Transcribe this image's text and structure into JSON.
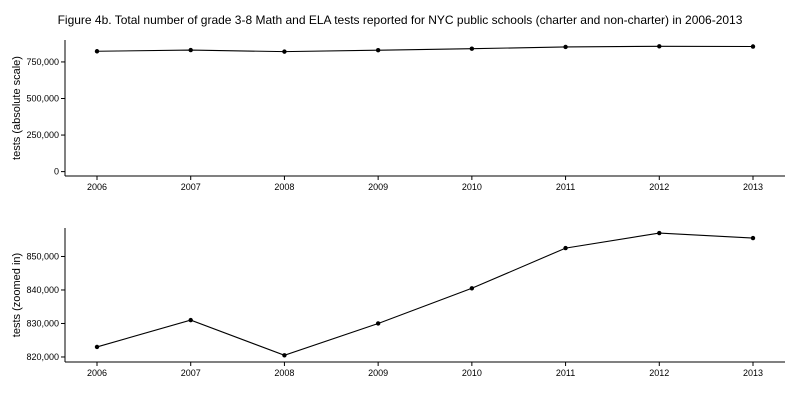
{
  "title": "Figure 4b. Total number of grade 3-8 Math and ELA tests reported for NYC public schools (charter and non-charter) in 2006-2013",
  "chart_data": [
    {
      "type": "line",
      "title": "",
      "ylabel": "tests (absolute scale)",
      "xlabel": "",
      "x": [
        2006,
        2007,
        2008,
        2009,
        2010,
        2011,
        2012,
        2013
      ],
      "x_ticks": [
        "2006",
        "2007",
        "2008",
        "2009",
        "2010",
        "2011",
        "2012",
        "2013"
      ],
      "y_ticks": [
        0,
        250000,
        500000,
        750000
      ],
      "y_tick_labels": [
        "0",
        "250,000",
        "500,000",
        "750,000"
      ],
      "ylim": [
        -30000,
        900000
      ],
      "series": [
        {
          "values": [
            823000,
            831000,
            820500,
            830000,
            840500,
            852500,
            857000,
            855500
          ]
        }
      ],
      "grid": false,
      "color": "#000000"
    },
    {
      "type": "line",
      "title": "",
      "ylabel": "tests (zoomed in)",
      "xlabel": "",
      "x": [
        2006,
        2007,
        2008,
        2009,
        2010,
        2011,
        2012,
        2013
      ],
      "x_ticks": [
        "2006",
        "2007",
        "2008",
        "2009",
        "2010",
        "2011",
        "2012",
        "2013"
      ],
      "y_ticks": [
        820000,
        830000,
        840000,
        850000
      ],
      "y_tick_labels": [
        "820,000",
        "830,000",
        "840,000",
        "850,000"
      ],
      "ylim": [
        818500,
        858500
      ],
      "series": [
        {
          "values": [
            823000,
            831000,
            820500,
            830000,
            840500,
            852500,
            857000,
            855500
          ]
        }
      ],
      "grid": false,
      "color": "#000000"
    }
  ]
}
